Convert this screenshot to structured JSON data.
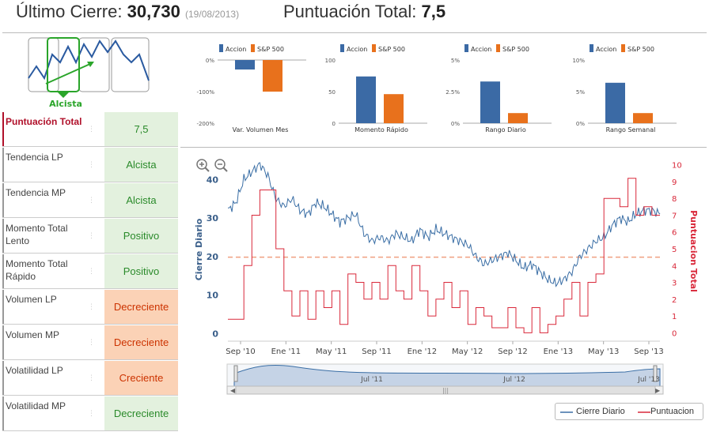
{
  "header": {
    "close_label": "Último Cierre:",
    "close_value": "30,730",
    "close_date": "(19/08/2013)",
    "score_label": "Puntuación Total:",
    "score_value": "7,5"
  },
  "trend_widget": {
    "label": "Alcista",
    "colors": {
      "selected": "#2aa52a",
      "line": "#2a5aa0"
    }
  },
  "indicators": [
    {
      "label": "Puntuación Total",
      "value": "7,5",
      "tone": "green",
      "highlight": true
    },
    {
      "label": "Tendencia LP",
      "value": "Alcista",
      "tone": "green"
    },
    {
      "label": "Tendencia MP",
      "value": "Alcista",
      "tone": "green"
    },
    {
      "label": "Momento Total Lento",
      "value": "Positivo",
      "tone": "green"
    },
    {
      "label": "Momento Total Rápido",
      "value": "Positivo",
      "tone": "green"
    },
    {
      "label": "Volumen LP",
      "value": "Decreciente",
      "tone": "orange"
    },
    {
      "label": "Volumen MP",
      "value": "Decreciente",
      "tone": "orange"
    },
    {
      "label": "Volatilidad LP",
      "value": "Creciente",
      "tone": "orange"
    },
    {
      "label": "Volatilidad MP",
      "value": "Decreciente",
      "tone": "green"
    }
  ],
  "colors": {
    "accion": "#3b6aa5",
    "sp500": "#e8711c",
    "cierre": "#3a6ea5",
    "puntuacion": "#d9283a",
    "highlight_label": "#b0102a"
  },
  "chart_data": [
    {
      "type": "bar",
      "title": "Var. Volumen Mes",
      "legend": [
        "Accion",
        "S&P 500"
      ],
      "ticks": [
        "0%",
        "-100%",
        "-200%"
      ],
      "ylim": [
        -200,
        0
      ],
      "values": [
        -30,
        -100
      ]
    },
    {
      "type": "bar",
      "title": "Momento Rápido",
      "legend": [
        "Accion",
        "S&P 500"
      ],
      "ticks": [
        "100",
        "50",
        "0"
      ],
      "ylim": [
        0,
        100
      ],
      "values": [
        74,
        46
      ]
    },
    {
      "type": "bar",
      "title": "Rango Diario",
      "legend": [
        "Accion",
        "S&P 500"
      ],
      "ticks": [
        "5%",
        "2.5%",
        "0%"
      ],
      "ylim": [
        0,
        5
      ],
      "values": [
        3.3,
        0.8
      ]
    },
    {
      "type": "bar",
      "title": "Rango Semanal",
      "legend": [
        "Accion",
        "S&P 500"
      ],
      "ticks": [
        "10%",
        "5%",
        "0%"
      ],
      "ylim": [
        0,
        10
      ],
      "values": [
        6.4,
        1.6
      ]
    },
    {
      "type": "line",
      "ylabel": "Cierre Diario",
      "y2label": "Puntuacion Total",
      "ylim": [
        -2,
        46
      ],
      "y2lim": [
        -0.5,
        10.5
      ],
      "yticks": [
        "0",
        "10",
        "20",
        "30",
        "40"
      ],
      "y2ticks": [
        "0",
        "1",
        "2",
        "3",
        "4",
        "5",
        "6",
        "7",
        "8",
        "9",
        "10"
      ],
      "xticks": [
        "Sep '10",
        "Ene '11",
        "May '11",
        "Sep '11",
        "Ene '12",
        "May '12",
        "Sep '12",
        "Ene '13",
        "May '13",
        "Sep '13"
      ],
      "threshold": 4.5,
      "series": [
        {
          "name": "Cierre Diario",
          "values": [
            32,
            34,
            40,
            42,
            44,
            41,
            35,
            33,
            35,
            32,
            31,
            34,
            33,
            31,
            29,
            30,
            31,
            26,
            24,
            25,
            24,
            26,
            25,
            24,
            27,
            25,
            27,
            26,
            25,
            24,
            23,
            20,
            18,
            19,
            20,
            21,
            19,
            17,
            18,
            16,
            14,
            13,
            14,
            16,
            20,
            22,
            24,
            25,
            28,
            30,
            29,
            31,
            32,
            32,
            31
          ]
        },
        {
          "name": "Puntuacion",
          "values": [
            0.8,
            0.8,
            4.0,
            7.0,
            8.5,
            8.5,
            5.0,
            2.5,
            1.0,
            2.5,
            0.8,
            2.5,
            1.5,
            2.5,
            0.5,
            3.5,
            3.0,
            2.0,
            3.0,
            2.0,
            4.0,
            2.5,
            2.0,
            4.0,
            2.5,
            1.0,
            2.0,
            3.0,
            1.5,
            2.5,
            0.5,
            1.5,
            1.0,
            0.3,
            0.3,
            1.5,
            0.3,
            0.0,
            1.5,
            0.0,
            0.5,
            1.0,
            2.0,
            3.0,
            1.0,
            3.0,
            3.5,
            8.0,
            8.0,
            7.5,
            9.2,
            7.0,
            7.5,
            7.0,
            7.0
          ]
        }
      ]
    }
  ],
  "navigator": {
    "labels": [
      "Jul '11",
      "Jul '12",
      "Jul '13"
    ]
  },
  "legend": {
    "cierre": "Cierre Diario",
    "puntuacion": "Puntuacion"
  }
}
